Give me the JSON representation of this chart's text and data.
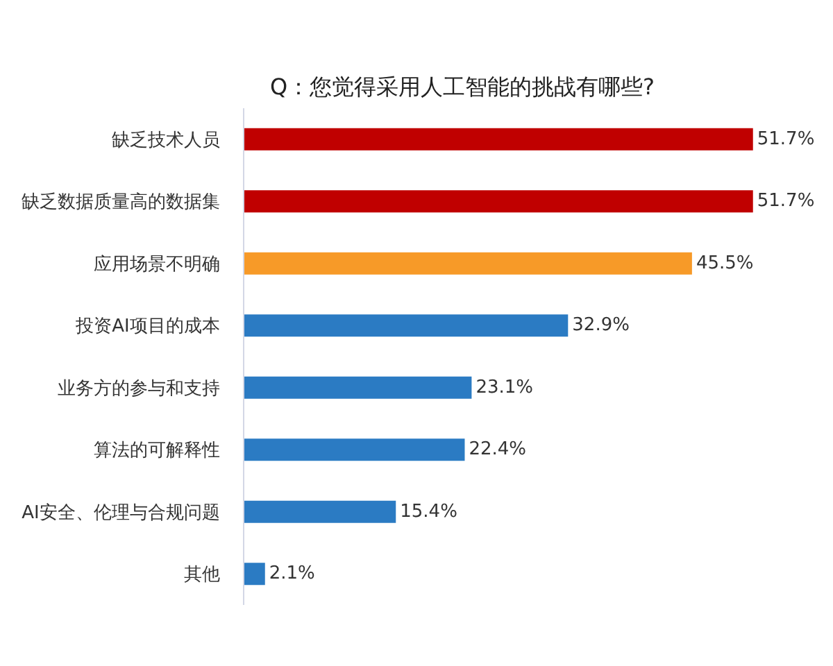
{
  "chart_data": {
    "type": "bar",
    "orientation": "horizontal",
    "title": "Q：您觉得采用人工智能的挑战有哪些?",
    "categories": [
      "缺乏技术人员",
      "缺乏数据质量高的数据集",
      "应用场景不明确",
      "投资AI项目的成本",
      "业务方的参与和支持",
      "算法的可解释性",
      "AI安全、伦理与合规问题",
      "其他"
    ],
    "values": [
      51.7,
      51.7,
      45.5,
      32.9,
      23.1,
      22.4,
      15.4,
      2.1
    ],
    "colors": [
      "#c00000",
      "#c00000",
      "#f79a28",
      "#2b7bc3",
      "#2b7bc3",
      "#2b7bc3",
      "#2b7bc3",
      "#2b7bc3"
    ],
    "value_labels": [
      "51.7%",
      "51.7%",
      "45.5%",
      "32.9%",
      "23.1%",
      "22.4%",
      "15.4%",
      "2.1%"
    ],
    "tick_labels": "y"
  }
}
